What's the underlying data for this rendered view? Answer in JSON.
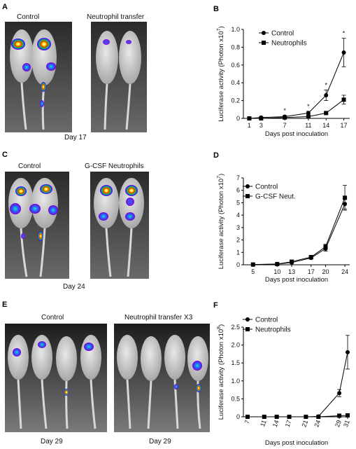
{
  "panels": {
    "A": {
      "letter": "A",
      "left_caption": "Control",
      "right_caption": "Neutrophil transfer",
      "day": "Day 17"
    },
    "C": {
      "letter": "C",
      "left_caption": "Control",
      "right_caption": "G-CSF Neutrophils",
      "day": "Day 24"
    },
    "E": {
      "letter": "E",
      "left_caption": "Control",
      "right_caption": "Neutrophil transfer X3",
      "day_left": "Day 29",
      "day_right": "Day 29"
    }
  },
  "chart_data": [
    {
      "panel": "B",
      "type": "line",
      "xlabel": "Days post inoculation",
      "ylabel": "Luciferase activity (Photon x10",
      "ylabel_exp": "7",
      "ylim": [
        0,
        1.0
      ],
      "yticks": [
        "0",
        "0.2",
        "0.4",
        "0.6",
        "0.8",
        "1.0"
      ],
      "x": [
        1,
        3,
        7,
        11,
        14,
        17
      ],
      "series": [
        {
          "name": "Control",
          "marker": "circle",
          "values": [
            0,
            0.01,
            0.02,
            0.06,
            0.26,
            0.74
          ],
          "err": [
            0,
            0,
            0.01,
            0.02,
            0.06,
            0.16
          ]
        },
        {
          "name": "Neutrophils",
          "marker": "square",
          "values": [
            0,
            0,
            0.01,
            0.02,
            0.06,
            0.21
          ],
          "err": [
            0,
            0,
            0,
            0.01,
            0.01,
            0.05
          ]
        }
      ],
      "stars_at": [
        7,
        11,
        14,
        17
      ],
      "star": "*"
    },
    {
      "panel": "D",
      "type": "line",
      "xlabel": "Days post inoculation",
      "ylabel": "Luciferase activity (Photon x10",
      "ylabel_exp": "7",
      "ylim": [
        0,
        7
      ],
      "yticks": [
        "0",
        "1",
        "2",
        "3",
        "4",
        "5",
        "6",
        "7"
      ],
      "x": [
        5,
        10,
        13,
        17,
        20,
        24
      ],
      "series": [
        {
          "name": "Control",
          "marker": "circle",
          "values": [
            0.02,
            0.05,
            0.18,
            0.55,
            1.3,
            4.9
          ],
          "err": [
            0,
            0,
            0.05,
            0.1,
            0.2,
            0.4
          ]
        },
        {
          "name": "G-CSF Neut.",
          "marker": "square",
          "values": [
            0.02,
            0.06,
            0.25,
            0.62,
            1.45,
            5.4
          ],
          "err": [
            0,
            0,
            0.06,
            0.1,
            0.2,
            1.0
          ]
        }
      ]
    },
    {
      "panel": "F",
      "type": "line",
      "xlabel": "Days post inoculation",
      "ylabel": "Luciferase activity (Photon x10",
      "ylabel_exp": "8",
      "ylim": [
        0,
        2.5
      ],
      "yticks": [
        "0",
        "0.5",
        "1.0",
        "1.5",
        "2.0",
        "2.5"
      ],
      "x": [
        7,
        11,
        14,
        17,
        21,
        24,
        29,
        31
      ],
      "series": [
        {
          "name": "Control",
          "marker": "circle",
          "values": [
            0,
            0,
            0,
            0,
            0,
            0.01,
            0.66,
            1.8
          ],
          "err": [
            0,
            0,
            0,
            0,
            0,
            0,
            0.1,
            0.47
          ]
        },
        {
          "name": "Neutrophils",
          "marker": "square",
          "values": [
            0,
            0,
            0,
            0,
            0,
            0,
            0.03,
            0.04
          ],
          "err": [
            0,
            0,
            0,
            0,
            0,
            0,
            0.01,
            0.01
          ]
        }
      ]
    }
  ]
}
